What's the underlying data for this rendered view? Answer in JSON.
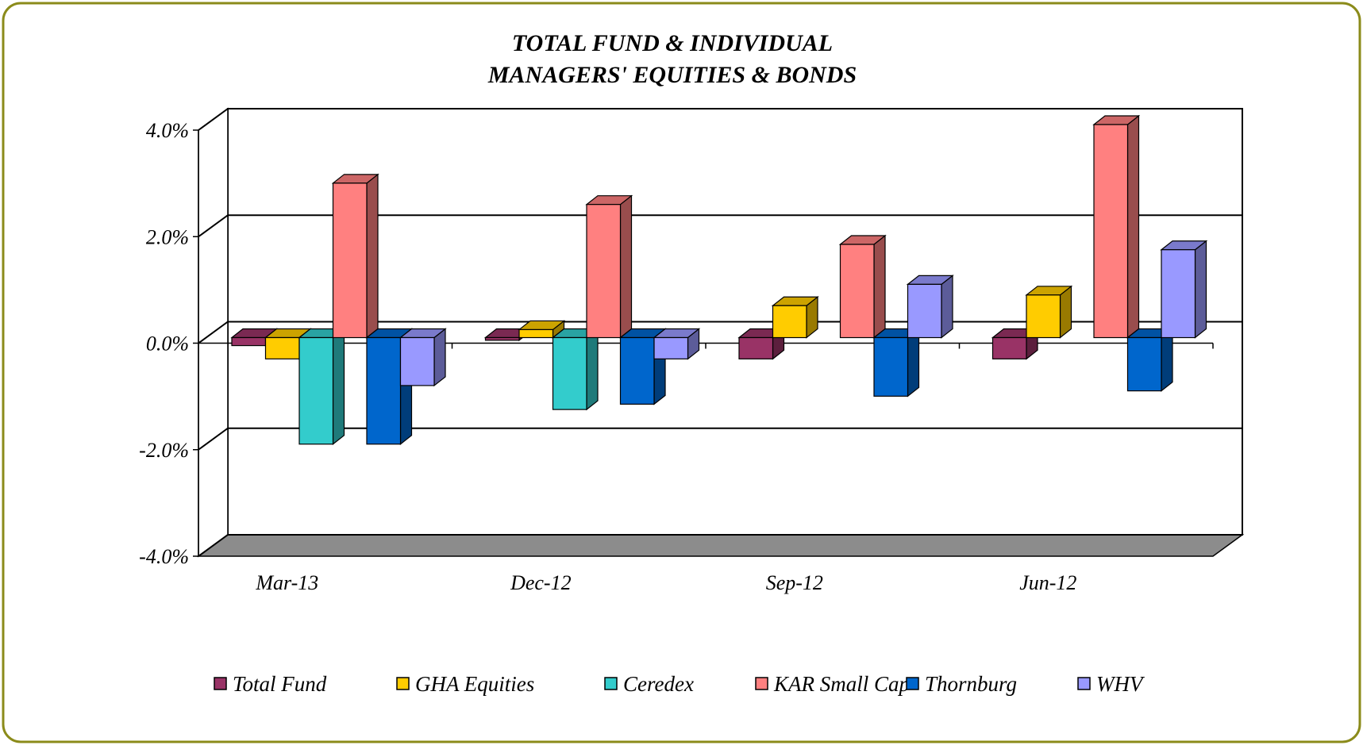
{
  "chart_data": {
    "type": "bar3d",
    "title": [
      "TOTAL FUND  & INDIVIDUAL",
      "MANAGERS' EQUITIES & BONDS"
    ],
    "categories": [
      "Mar-13",
      "Dec-12",
      "Sep-12",
      "Jun-12"
    ],
    "ylim": [
      -4,
      4
    ],
    "yticks": [
      {
        "value": -4,
        "label": "-4.0%"
      },
      {
        "value": -2,
        "label": "-2.0%"
      },
      {
        "value": 0,
        "label": "0.0%"
      },
      {
        "value": 2,
        "label": "2.0%"
      },
      {
        "value": 4,
        "label": "4.0%"
      }
    ],
    "grid": true,
    "legend": "bottom",
    "series": [
      {
        "name": "Total Fund",
        "color": "#993366",
        "values": [
          -0.15,
          -0.05,
          -0.4,
          -0.4
        ]
      },
      {
        "name": "GHA Equities",
        "color": "#FFCC00",
        "values": [
          -0.4,
          0.15,
          0.6,
          0.8
        ]
      },
      {
        "name": "Ceredex",
        "color": "#33CCCC",
        "values": [
          -2.0,
          -1.35,
          null,
          null
        ]
      },
      {
        "name": "KAR Small Cap",
        "color": "#FF8080",
        "values": [
          2.9,
          2.5,
          1.75,
          4.0
        ]
      },
      {
        "name": "Thornburg",
        "color": "#0066CC",
        "values": [
          -2.0,
          -1.25,
          -1.1,
          -1.0
        ]
      },
      {
        "name": "WHV",
        "color": "#9999FF",
        "values": [
          -0.9,
          -0.4,
          1.0,
          1.65
        ]
      }
    ]
  }
}
